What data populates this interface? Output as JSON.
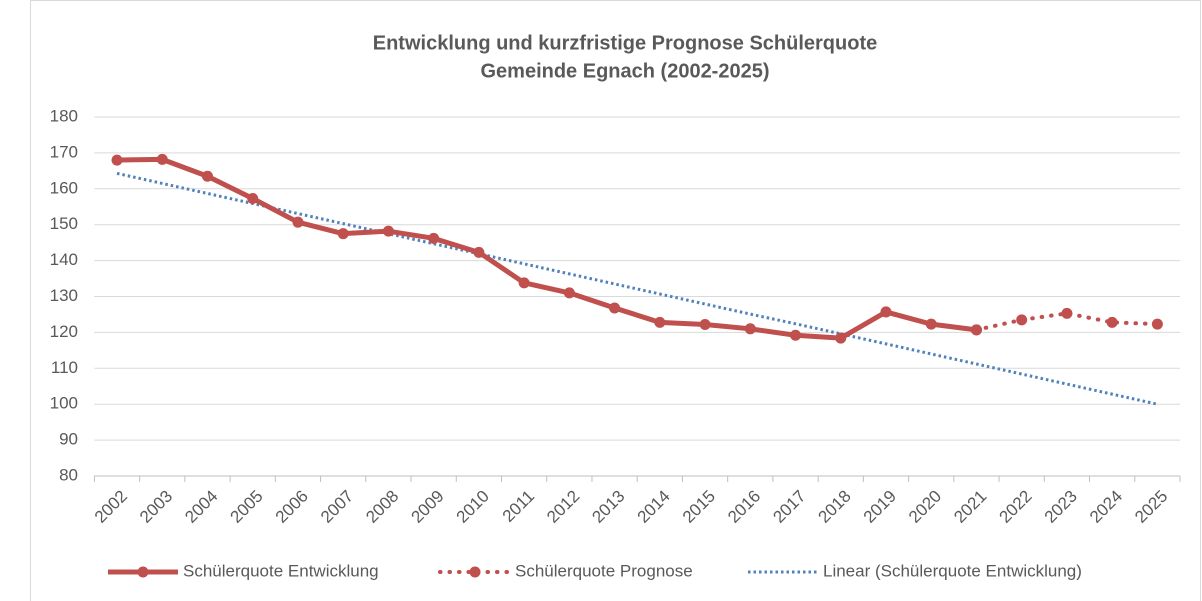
{
  "chart_data": {
    "type": "line",
    "title": [
      "Entwicklung und kurzfristige Prognose Schülerquote",
      "Gemeinde Egnach (2002-2025)"
    ],
    "categories": [
      "2002",
      "2003",
      "2004",
      "2005",
      "2006",
      "2007",
      "2008",
      "2009",
      "2010",
      "2011",
      "2012",
      "2013",
      "2014",
      "2015",
      "2016",
      "2017",
      "2018",
      "2019",
      "2020",
      "2021",
      "2022",
      "2023",
      "2024",
      "2025"
    ],
    "series": [
      {
        "name": "Schülerquote Entwicklung",
        "color": "#c0504d",
        "dash": "solid",
        "marker": true,
        "values": [
          168,
          168.2,
          163.5,
          157.3,
          150.7,
          147.5,
          148.2,
          146.2,
          142.3,
          133.8,
          131,
          126.8,
          122.8,
          122.2,
          121,
          119.2,
          118.4,
          125.7,
          122.3,
          120.7,
          null,
          null,
          null,
          null
        ]
      },
      {
        "name": "Schülerquote Prognose",
        "color": "#c0504d",
        "dash": "dotted",
        "marker": true,
        "values": [
          null,
          null,
          null,
          null,
          null,
          null,
          null,
          null,
          null,
          null,
          null,
          null,
          null,
          null,
          null,
          null,
          null,
          null,
          null,
          120.7,
          123.5,
          125.3,
          122.8,
          122.3
        ]
      },
      {
        "name": "Linear (Schülerquote Entwicklung)",
        "color": "#4f81bd",
        "dash": "fine-dotted",
        "marker": false,
        "values": [
          164.3,
          161.5,
          158.7,
          155.9,
          153.1,
          150.3,
          147.5,
          144.7,
          141.9,
          139.1,
          136.3,
          133.5,
          130.7,
          127.9,
          125.1,
          122.4,
          119.6,
          116.8,
          114.0,
          111.2,
          108.4,
          105.6,
          102.8,
          100.0
        ]
      }
    ],
    "ylim": [
      80,
      180
    ],
    "yticks": [
      80,
      90,
      100,
      110,
      120,
      130,
      140,
      150,
      160,
      170,
      180
    ],
    "grid": true,
    "legend": "bottom"
  }
}
